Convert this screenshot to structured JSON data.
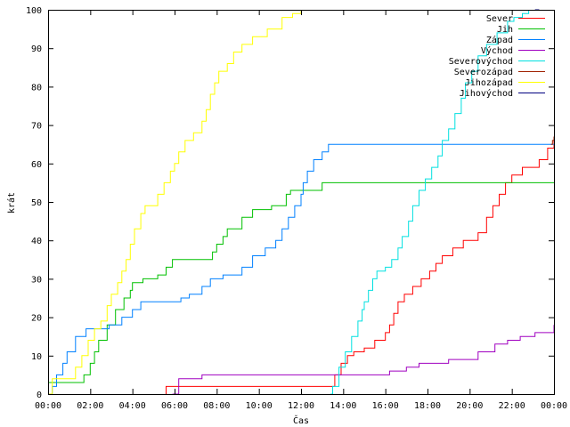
{
  "chart_data": {
    "type": "line",
    "title": "",
    "xlabel": "Čas",
    "ylabel": "krát",
    "x_unit": "hours",
    "xlim": [
      0,
      24
    ],
    "ylim": [
      0,
      100
    ],
    "grid": false,
    "legend_position": "top-right",
    "x_ticks": [
      {
        "v": 0,
        "label": "00:00"
      },
      {
        "v": 2,
        "label": "02:00"
      },
      {
        "v": 4,
        "label": "04:00"
      },
      {
        "v": 6,
        "label": "06:00"
      },
      {
        "v": 8,
        "label": "08:00"
      },
      {
        "v": 10,
        "label": "10:00"
      },
      {
        "v": 12,
        "label": "12:00"
      },
      {
        "v": 14,
        "label": "14:00"
      },
      {
        "v": 16,
        "label": "16:00"
      },
      {
        "v": 18,
        "label": "18:00"
      },
      {
        "v": 20,
        "label": "20:00"
      },
      {
        "v": 22,
        "label": "22:00"
      },
      {
        "v": 24,
        "label": "00:00"
      }
    ],
    "y_ticks": [
      {
        "v": 0,
        "label": "0"
      },
      {
        "v": 10,
        "label": "10"
      },
      {
        "v": 20,
        "label": "20"
      },
      {
        "v": 30,
        "label": "30"
      },
      {
        "v": 40,
        "label": "40"
      },
      {
        "v": 50,
        "label": "50"
      },
      {
        "v": 60,
        "label": "60"
      },
      {
        "v": 70,
        "label": "70"
      },
      {
        "v": 80,
        "label": "80"
      },
      {
        "v": 90,
        "label": "90"
      },
      {
        "v": 100,
        "label": "100"
      }
    ],
    "series": [
      {
        "name": "Sever",
        "color": "#ff0000",
        "points": [
          [
            5.6,
            0
          ],
          [
            5.6,
            2
          ],
          [
            13.5,
            2
          ],
          [
            13.6,
            5
          ],
          [
            13.9,
            8
          ],
          [
            14.2,
            10
          ],
          [
            14.5,
            11
          ],
          [
            15.0,
            12
          ],
          [
            15.5,
            14
          ],
          [
            16.0,
            16
          ],
          [
            16.2,
            18
          ],
          [
            16.4,
            21
          ],
          [
            16.6,
            24
          ],
          [
            16.9,
            26
          ],
          [
            17.3,
            28
          ],
          [
            17.7,
            30
          ],
          [
            18.1,
            32
          ],
          [
            18.4,
            34
          ],
          [
            18.7,
            36
          ],
          [
            19.2,
            38
          ],
          [
            19.7,
            40
          ],
          [
            20.4,
            42
          ],
          [
            20.8,
            46
          ],
          [
            21.1,
            49
          ],
          [
            21.4,
            52
          ],
          [
            21.7,
            55
          ],
          [
            22.0,
            57
          ],
          [
            22.5,
            59
          ],
          [
            23.3,
            61
          ],
          [
            23.7,
            64
          ],
          [
            24,
            67
          ]
        ]
      },
      {
        "name": "Jih",
        "color": "#00c000",
        "points": [
          [
            0,
            3
          ],
          [
            1.5,
            3
          ],
          [
            1.7,
            5
          ],
          [
            2.0,
            8
          ],
          [
            2.2,
            11
          ],
          [
            2.4,
            14
          ],
          [
            2.8,
            18
          ],
          [
            3.2,
            22
          ],
          [
            3.6,
            25
          ],
          [
            3.9,
            27
          ],
          [
            4.0,
            29
          ],
          [
            4.5,
            30
          ],
          [
            5.2,
            31
          ],
          [
            5.6,
            33
          ],
          [
            5.9,
            35
          ],
          [
            7.5,
            35
          ],
          [
            7.8,
            37
          ],
          [
            8.0,
            39
          ],
          [
            8.3,
            41
          ],
          [
            8.5,
            43
          ],
          [
            9.2,
            46
          ],
          [
            9.7,
            48
          ],
          [
            10.6,
            49
          ],
          [
            11.3,
            52
          ],
          [
            11.5,
            53
          ],
          [
            12.8,
            53
          ],
          [
            13.0,
            55
          ],
          [
            24,
            55
          ]
        ]
      },
      {
        "name": "Západ",
        "color": "#0080ff",
        "points": [
          [
            0,
            0
          ],
          [
            0.2,
            2
          ],
          [
            0.4,
            5
          ],
          [
            0.7,
            8
          ],
          [
            0.9,
            11
          ],
          [
            1.3,
            15
          ],
          [
            1.8,
            17
          ],
          [
            2.5,
            17
          ],
          [
            2.9,
            18
          ],
          [
            3.5,
            20
          ],
          [
            4.0,
            22
          ],
          [
            4.4,
            24
          ],
          [
            5.9,
            24
          ],
          [
            6.3,
            25
          ],
          [
            6.7,
            26
          ],
          [
            7.3,
            28
          ],
          [
            7.7,
            30
          ],
          [
            8.3,
            31
          ],
          [
            9.2,
            33
          ],
          [
            9.7,
            36
          ],
          [
            10.3,
            38
          ],
          [
            10.8,
            40
          ],
          [
            11.1,
            43
          ],
          [
            11.4,
            46
          ],
          [
            11.7,
            49
          ],
          [
            12.0,
            52
          ],
          [
            12.1,
            55
          ],
          [
            12.3,
            58
          ],
          [
            12.6,
            61
          ],
          [
            13.0,
            63
          ],
          [
            13.3,
            65
          ],
          [
            24,
            65
          ]
        ]
      },
      {
        "name": "Východ",
        "color": "#a000c0",
        "points": [
          [
            5.9,
            0
          ],
          [
            6.2,
            4
          ],
          [
            7.3,
            5
          ],
          [
            16.0,
            5
          ],
          [
            16.2,
            6
          ],
          [
            17.0,
            7
          ],
          [
            17.6,
            8
          ],
          [
            18.5,
            8
          ],
          [
            19.0,
            9
          ],
          [
            20.1,
            9
          ],
          [
            20.4,
            11
          ],
          [
            21.2,
            13
          ],
          [
            21.8,
            14
          ],
          [
            22.4,
            15
          ],
          [
            23.1,
            16
          ],
          [
            23.8,
            16
          ],
          [
            24,
            18
          ]
        ]
      },
      {
        "name": "Severovýchod",
        "color": "#00e0e0",
        "points": [
          [
            13.4,
            0
          ],
          [
            13.5,
            2
          ],
          [
            13.8,
            7
          ],
          [
            14.1,
            11
          ],
          [
            14.4,
            15
          ],
          [
            14.7,
            19
          ],
          [
            14.9,
            22
          ],
          [
            15.0,
            24
          ],
          [
            15.2,
            27
          ],
          [
            15.4,
            30
          ],
          [
            15.6,
            32
          ],
          [
            16.0,
            33
          ],
          [
            16.3,
            35
          ],
          [
            16.6,
            38
          ],
          [
            16.8,
            41
          ],
          [
            17.1,
            45
          ],
          [
            17.3,
            49
          ],
          [
            17.6,
            53
          ],
          [
            17.9,
            56
          ],
          [
            18.2,
            59
          ],
          [
            18.5,
            62
          ],
          [
            18.7,
            66
          ],
          [
            19.0,
            69
          ],
          [
            19.3,
            73
          ],
          [
            19.6,
            77
          ],
          [
            19.8,
            81
          ],
          [
            20.1,
            84
          ],
          [
            20.4,
            88
          ],
          [
            20.8,
            91
          ],
          [
            21.3,
            94
          ],
          [
            21.8,
            97
          ],
          [
            22.1,
            98
          ],
          [
            22.5,
            99
          ],
          [
            22.8,
            100
          ]
        ]
      },
      {
        "name": "Severozápad",
        "color": "#a02000",
        "points": [
          [
            23.85,
            65
          ],
          [
            23.93,
            66
          ],
          [
            24,
            67
          ]
        ]
      },
      {
        "name": "Jihozápad",
        "color": "#ffff00",
        "points": [
          [
            0,
            0
          ],
          [
            0.2,
            4
          ],
          [
            1.0,
            4
          ],
          [
            1.3,
            7
          ],
          [
            1.6,
            10
          ],
          [
            1.9,
            14
          ],
          [
            2.2,
            17
          ],
          [
            2.5,
            19
          ],
          [
            2.8,
            23
          ],
          [
            3.0,
            26
          ],
          [
            3.3,
            29
          ],
          [
            3.5,
            32
          ],
          [
            3.7,
            35
          ],
          [
            3.9,
            39
          ],
          [
            4.1,
            43
          ],
          [
            4.4,
            47
          ],
          [
            4.6,
            49
          ],
          [
            5.0,
            49
          ],
          [
            5.2,
            52
          ],
          [
            5.5,
            55
          ],
          [
            5.8,
            58
          ],
          [
            6.0,
            60
          ],
          [
            6.2,
            63
          ],
          [
            6.5,
            66
          ],
          [
            6.9,
            68
          ],
          [
            7.3,
            71
          ],
          [
            7.5,
            74
          ],
          [
            7.7,
            78
          ],
          [
            7.9,
            81
          ],
          [
            8.1,
            84
          ],
          [
            8.5,
            86
          ],
          [
            8.8,
            89
          ],
          [
            9.2,
            91
          ],
          [
            9.7,
            93
          ],
          [
            10.4,
            95
          ],
          [
            11.1,
            98
          ],
          [
            11.6,
            99
          ],
          [
            12.0,
            100
          ]
        ]
      },
      {
        "name": "Jihovýchod",
        "color": "#000080",
        "points": [
          [
            23.1,
            100
          ],
          [
            23.3,
            100
          ]
        ]
      }
    ]
  }
}
